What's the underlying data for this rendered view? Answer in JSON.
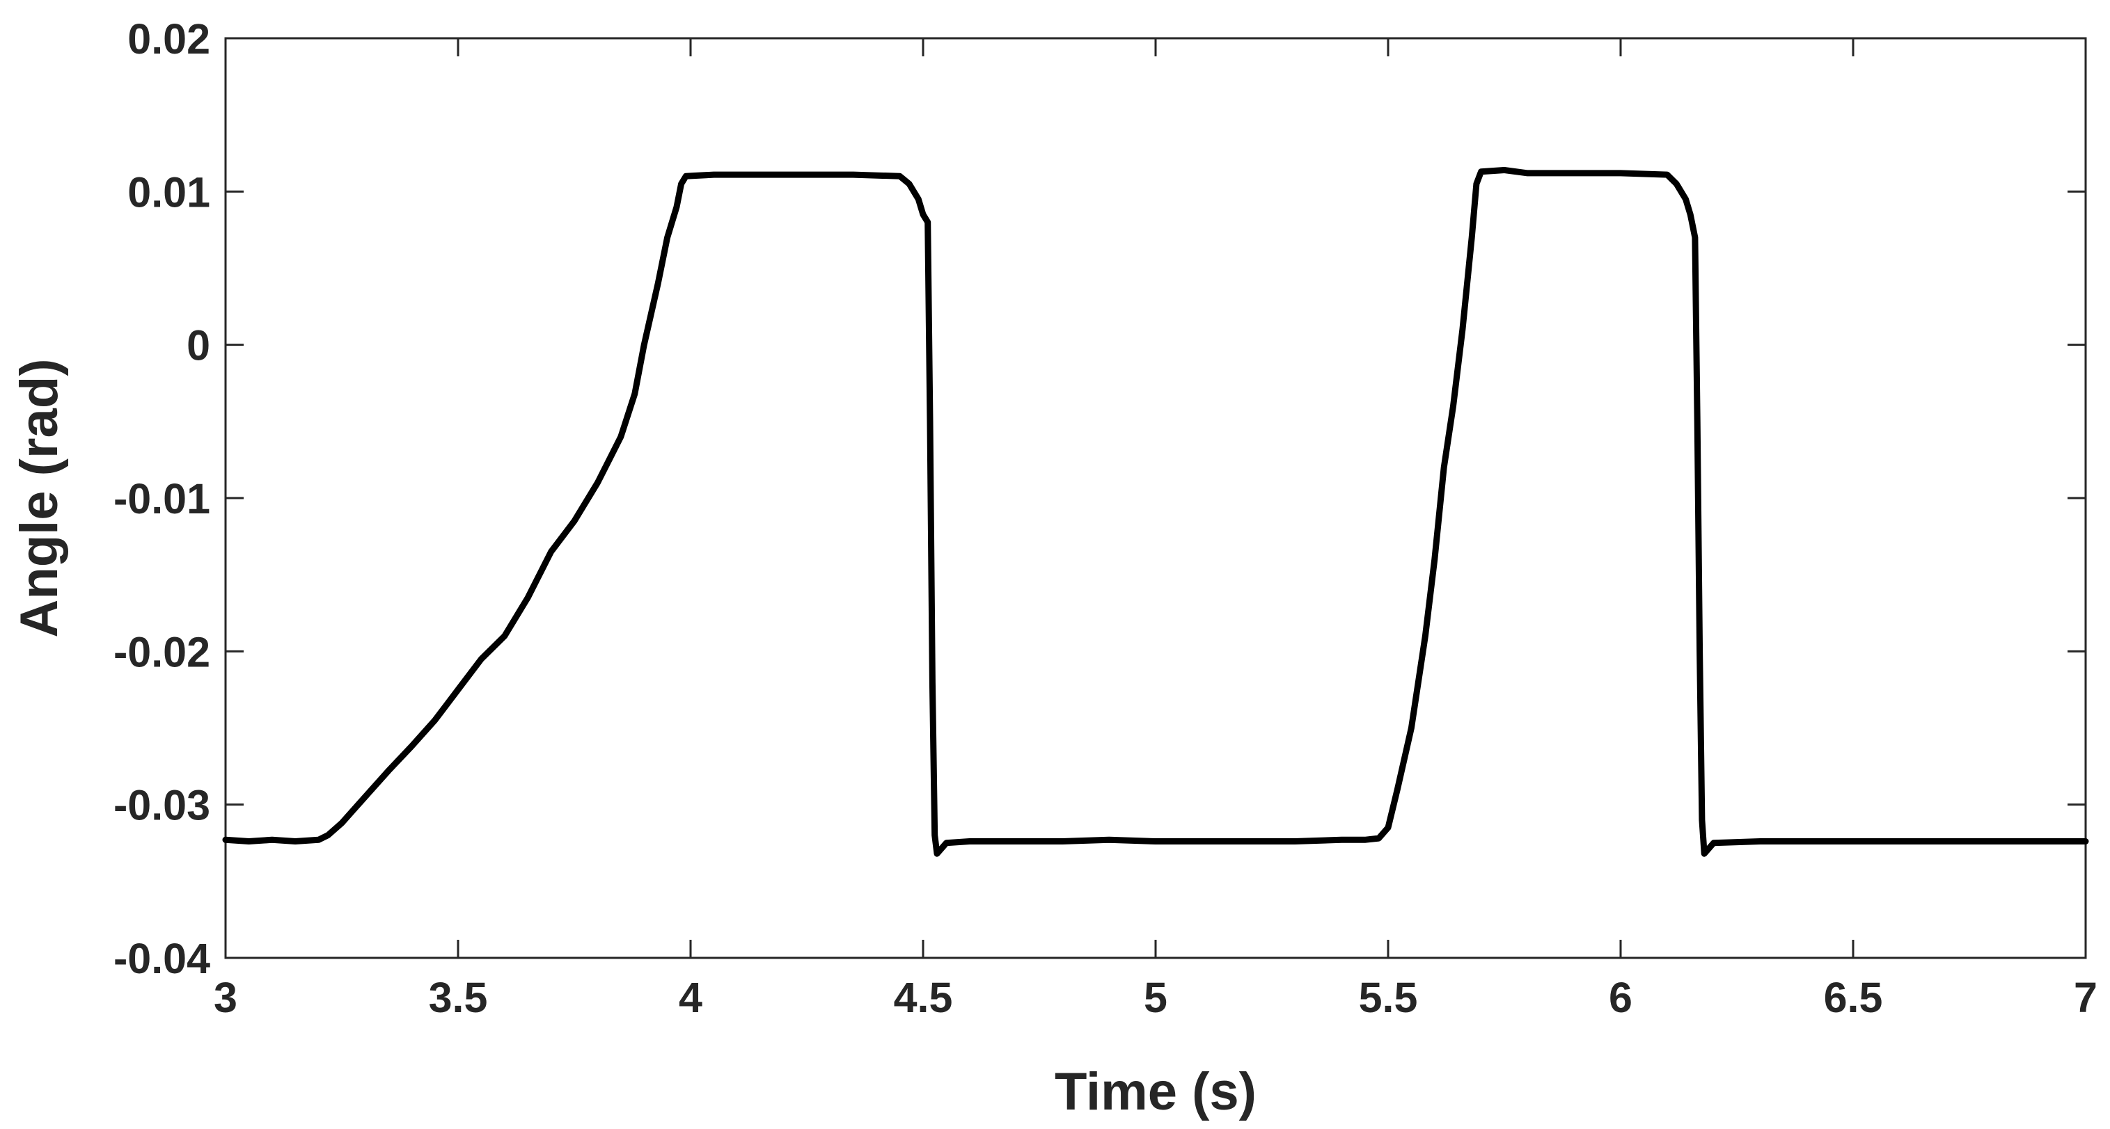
{
  "chart_data": {
    "type": "line",
    "title": "",
    "xlabel": "Time (s)",
    "ylabel": "Angle (rad)",
    "xlim": [
      3,
      7
    ],
    "ylim": [
      -0.04,
      0.02
    ],
    "grid": false,
    "legend": "none",
    "x_ticks": [
      {
        "value": 3,
        "label": "3"
      },
      {
        "value": 3.5,
        "label": "3.5"
      },
      {
        "value": 4,
        "label": "4"
      },
      {
        "value": 4.5,
        "label": "4.5"
      },
      {
        "value": 5,
        "label": "5"
      },
      {
        "value": 5.5,
        "label": "5.5"
      },
      {
        "value": 6,
        "label": "6"
      },
      {
        "value": 6.5,
        "label": "6.5"
      },
      {
        "value": 7,
        "label": "7"
      }
    ],
    "y_ticks": [
      {
        "value": 0.02,
        "label": "0.02"
      },
      {
        "value": 0.01,
        "label": "0.01"
      },
      {
        "value": 0,
        "label": "0"
      },
      {
        "value": -0.01,
        "label": "-0.01"
      },
      {
        "value": -0.02,
        "label": "-0.02"
      },
      {
        "value": -0.03,
        "label": "-0.03"
      },
      {
        "value": -0.04,
        "label": "-0.04"
      }
    ],
    "series": [
      {
        "color": "#000000",
        "points": [
          [
            3.0,
            -0.0323
          ],
          [
            3.05,
            -0.0324
          ],
          [
            3.1,
            -0.0323
          ],
          [
            3.15,
            -0.0324
          ],
          [
            3.2,
            -0.0323
          ],
          [
            3.22,
            -0.032
          ],
          [
            3.25,
            -0.0312
          ],
          [
            3.3,
            -0.0295
          ],
          [
            3.35,
            -0.0278
          ],
          [
            3.4,
            -0.0262
          ],
          [
            3.45,
            -0.0245
          ],
          [
            3.5,
            -0.0225
          ],
          [
            3.55,
            -0.0205
          ],
          [
            3.6,
            -0.019
          ],
          [
            3.65,
            -0.0165
          ],
          [
            3.7,
            -0.0135
          ],
          [
            3.75,
            -0.0115
          ],
          [
            3.8,
            -0.009
          ],
          [
            3.85,
            -0.006
          ],
          [
            3.88,
            -0.0032
          ],
          [
            3.9,
            0.0
          ],
          [
            3.93,
            0.004
          ],
          [
            3.95,
            0.007
          ],
          [
            3.97,
            0.009
          ],
          [
            3.98,
            0.0105
          ],
          [
            3.99,
            0.011
          ],
          [
            4.05,
            0.0111
          ],
          [
            4.15,
            0.0111
          ],
          [
            4.25,
            0.0111
          ],
          [
            4.35,
            0.0111
          ],
          [
            4.45,
            0.011
          ],
          [
            4.47,
            0.0105
          ],
          [
            4.49,
            0.0095
          ],
          [
            4.5,
            0.0085
          ],
          [
            4.51,
            0.008
          ],
          [
            4.515,
            -0.005
          ],
          [
            4.52,
            -0.022
          ],
          [
            4.525,
            -0.032
          ],
          [
            4.53,
            -0.0332
          ],
          [
            4.55,
            -0.0325
          ],
          [
            4.6,
            -0.0324
          ],
          [
            4.7,
            -0.0324
          ],
          [
            4.8,
            -0.0324
          ],
          [
            4.9,
            -0.0323
          ],
          [
            5.0,
            -0.0324
          ],
          [
            5.1,
            -0.0324
          ],
          [
            5.2,
            -0.0324
          ],
          [
            5.3,
            -0.0324
          ],
          [
            5.4,
            -0.0323
          ],
          [
            5.45,
            -0.0323
          ],
          [
            5.48,
            -0.0322
          ],
          [
            5.5,
            -0.0315
          ],
          [
            5.52,
            -0.029
          ],
          [
            5.55,
            -0.025
          ],
          [
            5.58,
            -0.019
          ],
          [
            5.6,
            -0.014
          ],
          [
            5.62,
            -0.008
          ],
          [
            5.64,
            -0.004
          ],
          [
            5.66,
            0.001
          ],
          [
            5.68,
            0.007
          ],
          [
            5.69,
            0.0105
          ],
          [
            5.7,
            0.0113
          ],
          [
            5.75,
            0.0114
          ],
          [
            5.8,
            0.0112
          ],
          [
            5.9,
            0.0112
          ],
          [
            6.0,
            0.0112
          ],
          [
            6.1,
            0.0111
          ],
          [
            6.12,
            0.0105
          ],
          [
            6.14,
            0.0095
          ],
          [
            6.15,
            0.0085
          ],
          [
            6.16,
            0.007
          ],
          [
            6.165,
            -0.005
          ],
          [
            6.17,
            -0.02
          ],
          [
            6.175,
            -0.031
          ],
          [
            6.18,
            -0.0332
          ],
          [
            6.2,
            -0.0325
          ],
          [
            6.3,
            -0.0324
          ],
          [
            6.4,
            -0.0324
          ],
          [
            6.5,
            -0.0324
          ],
          [
            6.6,
            -0.0324
          ],
          [
            6.7,
            -0.0324
          ],
          [
            6.8,
            -0.0324
          ],
          [
            6.9,
            -0.0324
          ],
          [
            7.0,
            -0.0324
          ]
        ]
      }
    ]
  }
}
